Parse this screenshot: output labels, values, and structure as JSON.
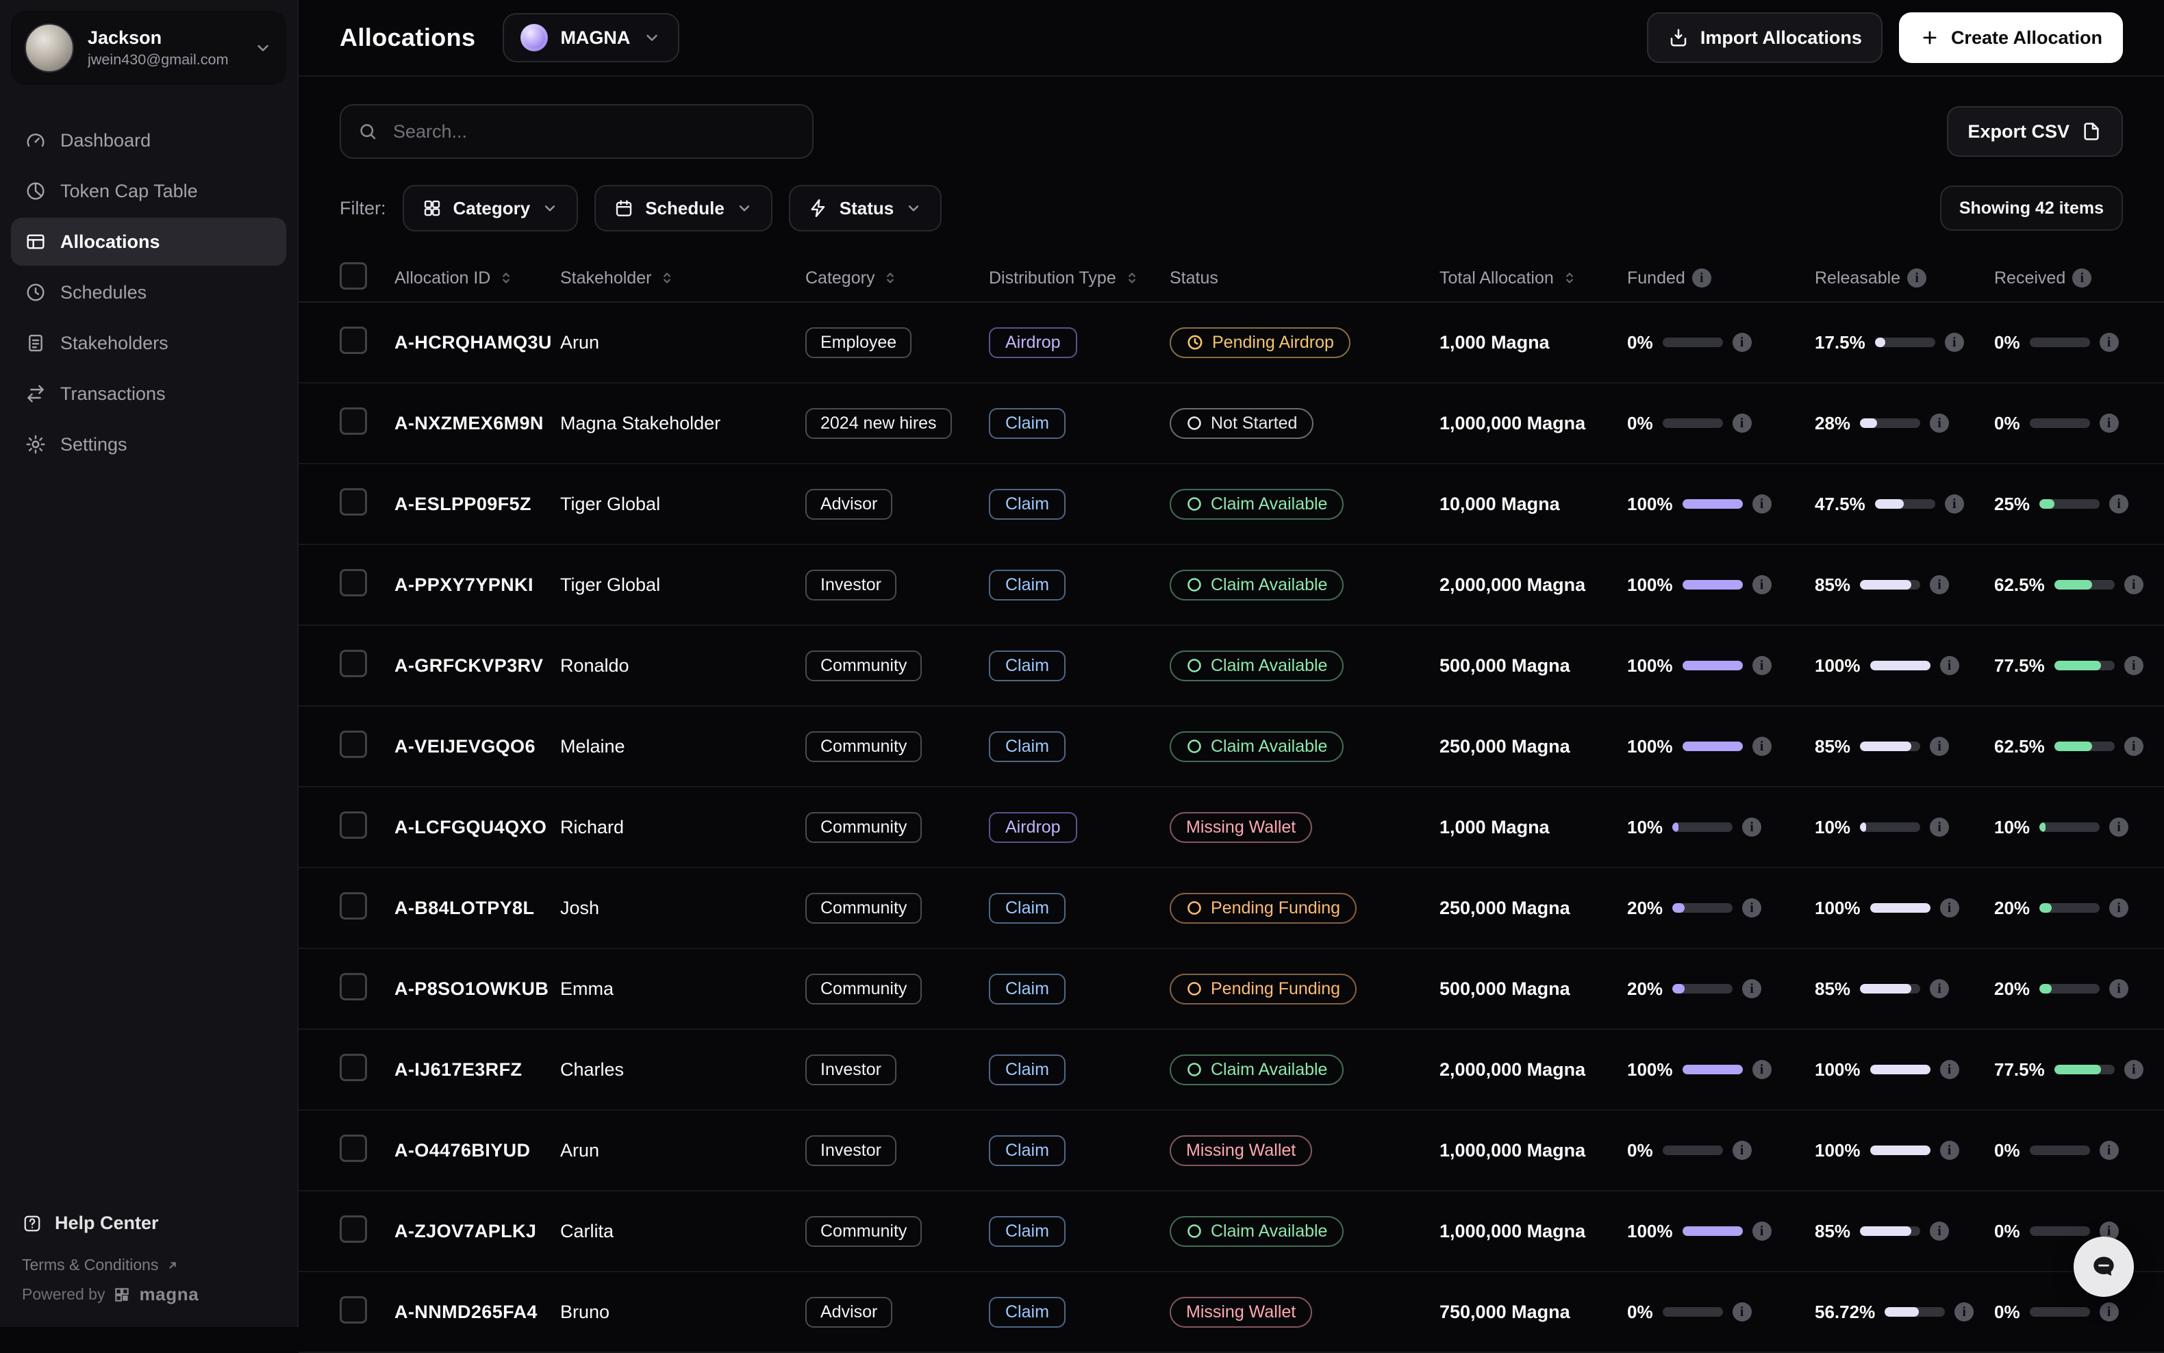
{
  "sidebar": {
    "user": {
      "name": "Jackson",
      "email": "jwein430@gmail.com"
    },
    "nav": [
      {
        "label": "Dashboard"
      },
      {
        "label": "Token Cap Table"
      },
      {
        "label": "Allocations",
        "active": true
      },
      {
        "label": "Schedules"
      },
      {
        "label": "Stakeholders"
      },
      {
        "label": "Transactions"
      },
      {
        "label": "Settings"
      }
    ],
    "footer": {
      "help_center": "Help Center",
      "terms": "Terms & Conditions",
      "powered_by": "Powered by",
      "brand": "magna"
    }
  },
  "header": {
    "title": "Allocations",
    "org_name": "MAGNA",
    "import_label": "Import Allocations",
    "create_label": "Create Allocation"
  },
  "toolbar": {
    "search_placeholder": "Search...",
    "export_label": "Export CSV"
  },
  "filters": {
    "label": "Filter:",
    "category": "Category",
    "schedule": "Schedule",
    "status": "Status",
    "showing": "Showing 42 items"
  },
  "table": {
    "columns": [
      {
        "label": "Allocation ID",
        "sort": true
      },
      {
        "label": "Stakeholder",
        "sort": true
      },
      {
        "label": "Category",
        "sort": true
      },
      {
        "label": "Distribution Type",
        "sort": true
      },
      {
        "label": "Status",
        "sort": false
      },
      {
        "label": "Total Allocation",
        "sort": true
      },
      {
        "label": "Funded",
        "info": true
      },
      {
        "label": "Releasable",
        "info": true
      },
      {
        "label": "Received",
        "info": true
      }
    ],
    "rows": [
      {
        "id": "A-HCRQHAMQ3U",
        "stakeholder": "Arun",
        "category": "Employee",
        "distribution": "Airdrop",
        "distribution_type": "airdrop",
        "status": "Pending Airdrop",
        "status_type": "pending-airdrop",
        "status_icon": "clock",
        "total": "1,000 Magna",
        "funded": {
          "label": "0%",
          "value": 0
        },
        "releasable": {
          "label": "17.5%",
          "value": 17.5
        },
        "received": {
          "label": "0%",
          "value": 0
        }
      },
      {
        "id": "A-NXZMEX6M9N",
        "stakeholder": "Magna Stakeholder",
        "category": "2024 new hires",
        "distribution": "Claim",
        "distribution_type": "claim",
        "status": "Not Started",
        "status_type": "not-started",
        "status_icon": "circle",
        "total": "1,000,000 Magna",
        "funded": {
          "label": "0%",
          "value": 0
        },
        "releasable": {
          "label": "28%",
          "value": 28
        },
        "received": {
          "label": "0%",
          "value": 0
        }
      },
      {
        "id": "A-ESLPP09F5Z",
        "stakeholder": "Tiger Global",
        "category": "Advisor",
        "distribution": "Claim",
        "distribution_type": "claim",
        "status": "Claim Available",
        "status_type": "claim-available",
        "status_icon": "circle",
        "total": "10,000 Magna",
        "funded": {
          "label": "100%",
          "value": 100
        },
        "releasable": {
          "label": "47.5%",
          "value": 47.5
        },
        "received": {
          "label": "25%",
          "value": 25
        }
      },
      {
        "id": "A-PPXY7YPNKI",
        "stakeholder": "Tiger Global",
        "category": "Investor",
        "distribution": "Claim",
        "distribution_type": "claim",
        "status": "Claim Available",
        "status_type": "claim-available",
        "status_icon": "circle",
        "total": "2,000,000 Magna",
        "funded": {
          "label": "100%",
          "value": 100
        },
        "releasable": {
          "label": "85%",
          "value": 85
        },
        "received": {
          "label": "62.5%",
          "value": 62.5
        }
      },
      {
        "id": "A-GRFCKVP3RV",
        "stakeholder": "Ronaldo",
        "category": "Community",
        "distribution": "Claim",
        "distribution_type": "claim",
        "status": "Claim Available",
        "status_type": "claim-available",
        "status_icon": "circle",
        "total": "500,000 Magna",
        "funded": {
          "label": "100%",
          "value": 100
        },
        "releasable": {
          "label": "100%",
          "value": 100
        },
        "received": {
          "label": "77.5%",
          "value": 77.5
        }
      },
      {
        "id": "A-VEIJEVGQO6",
        "stakeholder": "Melaine",
        "category": "Community",
        "distribution": "Claim",
        "distribution_type": "claim",
        "status": "Claim Available",
        "status_type": "claim-available",
        "status_icon": "circle",
        "total": "250,000 Magna",
        "funded": {
          "label": "100%",
          "value": 100
        },
        "releasable": {
          "label": "85%",
          "value": 85
        },
        "received": {
          "label": "62.5%",
          "value": 62.5
        }
      },
      {
        "id": "A-LCFGQU4QXO",
        "stakeholder": "Richard",
        "category": "Community",
        "distribution": "Airdrop",
        "distribution_type": "airdrop",
        "status": "Missing Wallet",
        "status_type": "missing-wallet",
        "status_icon": "none",
        "total": "1,000 Magna",
        "funded": {
          "label": "10%",
          "value": 10
        },
        "releasable": {
          "label": "10%",
          "value": 10
        },
        "received": {
          "label": "10%",
          "value": 10
        }
      },
      {
        "id": "A-B84LOTPY8L",
        "stakeholder": "Josh",
        "category": "Community",
        "distribution": "Claim",
        "distribution_type": "claim",
        "status": "Pending Funding",
        "status_type": "pending-funding",
        "status_icon": "circle",
        "total": "250,000 Magna",
        "funded": {
          "label": "20%",
          "value": 20
        },
        "releasable": {
          "label": "100%",
          "value": 100
        },
        "received": {
          "label": "20%",
          "value": 20
        }
      },
      {
        "id": "A-P8SO1OWKUB",
        "stakeholder": "Emma",
        "category": "Community",
        "distribution": "Claim",
        "distribution_type": "claim",
        "status": "Pending Funding",
        "status_type": "pending-funding",
        "status_icon": "circle",
        "total": "500,000 Magna",
        "funded": {
          "label": "20%",
          "value": 20
        },
        "releasable": {
          "label": "85%",
          "value": 85
        },
        "received": {
          "label": "20%",
          "value": 20
        }
      },
      {
        "id": "A-IJ617E3RFZ",
        "stakeholder": "Charles",
        "category": "Investor",
        "distribution": "Claim",
        "distribution_type": "claim",
        "status": "Claim Available",
        "status_type": "claim-available",
        "status_icon": "circle",
        "total": "2,000,000 Magna",
        "funded": {
          "label": "100%",
          "value": 100
        },
        "releasable": {
          "label": "100%",
          "value": 100
        },
        "received": {
          "label": "77.5%",
          "value": 77.5
        }
      },
      {
        "id": "A-O4476BIYUD",
        "stakeholder": "Arun",
        "category": "Investor",
        "distribution": "Claim",
        "distribution_type": "claim",
        "status": "Missing Wallet",
        "status_type": "missing-wallet",
        "status_icon": "none",
        "total": "1,000,000 Magna",
        "funded": {
          "label": "0%",
          "value": 0
        },
        "releasable": {
          "label": "100%",
          "value": 100
        },
        "received": {
          "label": "0%",
          "value": 0
        }
      },
      {
        "id": "A-ZJOV7APLKJ",
        "stakeholder": "Carlita",
        "category": "Community",
        "distribution": "Claim",
        "distribution_type": "claim",
        "status": "Claim Available",
        "status_type": "claim-available",
        "status_icon": "circle",
        "total": "1,000,000 Magna",
        "funded": {
          "label": "100%",
          "value": 100
        },
        "releasable": {
          "label": "85%",
          "value": 85
        },
        "received": {
          "label": "0%",
          "value": 0
        }
      },
      {
        "id": "A-NNMD265FA4",
        "stakeholder": "Bruno",
        "category": "Advisor",
        "distribution": "Claim",
        "distribution_type": "claim",
        "status": "Missing Wallet",
        "status_type": "missing-wallet",
        "status_icon": "none",
        "total": "750,000 Magna",
        "funded": {
          "label": "0%",
          "value": 0
        },
        "releasable": {
          "label": "56.72%",
          "value": 56.72
        },
        "received": {
          "label": "0%",
          "value": 0
        }
      }
    ]
  },
  "palette": {
    "page_bg": "#07070a",
    "sidebar_bg": "#131317",
    "funded_fill": "#b1a3f7",
    "releasable_fill": "#e4e2f6",
    "received_fill": "#7be0a5",
    "bar_track": "#33333a",
    "airdrop": "#c3b3fb",
    "claim": "#9ec9fd",
    "status_pending_airdrop": "#f3c56a",
    "status_not_started": "#e8e8ea",
    "status_claim_available": "#8ce8ab",
    "status_missing_wallet": "#ffa8b0",
    "status_pending_funding": "#fdba74",
    "create_button_bg": "#ffffff"
  }
}
